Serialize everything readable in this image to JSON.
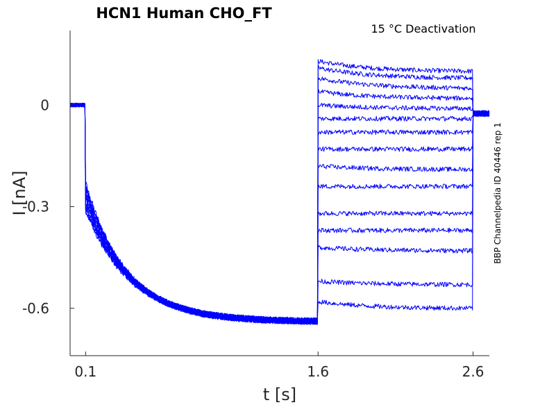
{
  "chart_data": {
    "type": "line",
    "title": "HCN1  Human  CHO_FT",
    "annotation": "15 °C  Deactivation",
    "side_label": "BBP Channelpedia ID 40446 rep 1",
    "xlabel": "t [s]",
    "ylabel": "I [nA]",
    "xlim": [
      0.0,
      2.705
    ],
    "ylim": [
      -0.74,
      0.22
    ],
    "x_ticks": [
      0.1,
      1.6,
      2.6
    ],
    "x_tick_labels": [
      "0.1",
      "1.6",
      "2.6"
    ],
    "y_ticks": [
      0,
      -0.3,
      -0.6
    ],
    "y_tick_labels": [
      "0",
      "-0.3",
      "-0.6"
    ],
    "grid": false,
    "color": "#0000ff",
    "protocol": {
      "holding_end": 0.1,
      "activation_end": 1.6,
      "deactivation_end": 2.6,
      "trace_end": 2.705,
      "holding_current": 0.0,
      "activation_start_current": -0.23,
      "activation_steady_current": -0.64,
      "activation_tau_s": 0.28,
      "post_current": -0.025
    },
    "series": [
      {
        "deact_start": 0.13,
        "deact_end": 0.1
      },
      {
        "deact_start": 0.11,
        "deact_end": 0.08
      },
      {
        "deact_start": 0.08,
        "deact_end": 0.05
      },
      {
        "deact_start": 0.04,
        "deact_end": 0.02
      },
      {
        "deact_start": 0.0,
        "deact_end": -0.01
      },
      {
        "deact_start": -0.04,
        "deact_end": -0.04
      },
      {
        "deact_start": -0.08,
        "deact_end": -0.08
      },
      {
        "deact_start": -0.13,
        "deact_end": -0.13
      },
      {
        "deact_start": -0.18,
        "deact_end": -0.19
      },
      {
        "deact_start": -0.24,
        "deact_end": -0.24
      },
      {
        "deact_start": -0.32,
        "deact_end": -0.32
      },
      {
        "deact_start": -0.37,
        "deact_end": -0.37
      },
      {
        "deact_start": -0.42,
        "deact_end": -0.43
      },
      {
        "deact_start": -0.52,
        "deact_end": -0.53
      },
      {
        "deact_start": -0.58,
        "deact_end": -0.6
      }
    ]
  }
}
